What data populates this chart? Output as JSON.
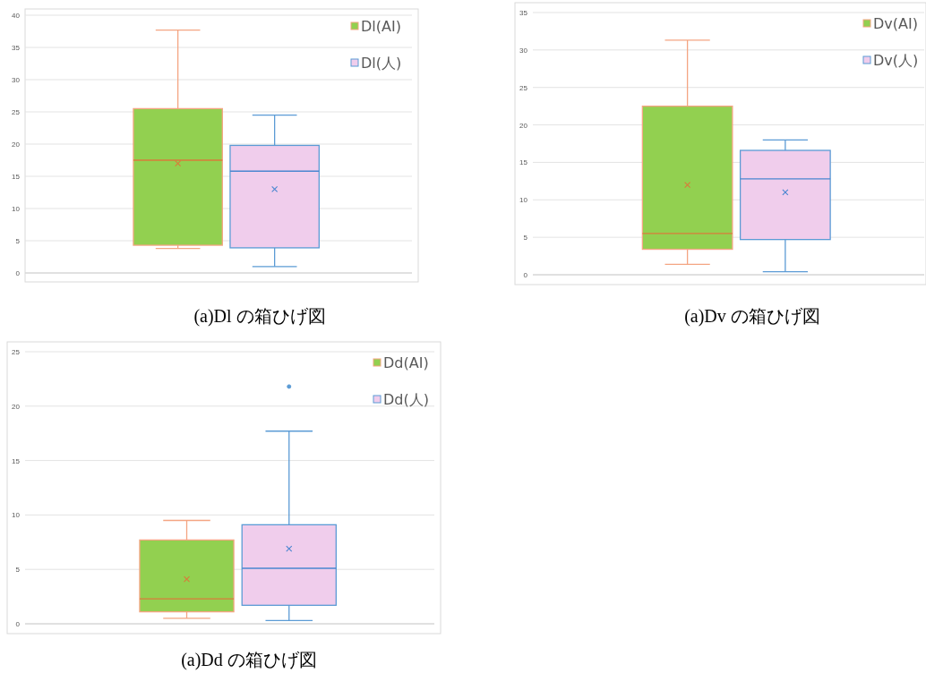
{
  "chart_data": [
    {
      "type": "box",
      "title": "(a)Dl の箱ひげ図",
      "categories": [
        null
      ],
      "ylim": [
        0,
        40
      ],
      "yticks": [
        0,
        5,
        10,
        15,
        20,
        25,
        30,
        35,
        40
      ],
      "grid": "y",
      "legend": "top right",
      "series": [
        {
          "name": "Dl(AI)",
          "color": "#92d050",
          "boxes": [
            {
              "low": 3.8,
              "q1": 4.3,
              "median": 17.5,
              "q3": 25.5,
              "high": 37.7,
              "mean": 17
            }
          ]
        },
        {
          "name": "Dl(人)",
          "color": "#f0cdec",
          "boxes": [
            {
              "low": 1,
              "q1": 3.9,
              "median": 15.8,
              "q3": 19.8,
              "high": 24.5,
              "mean": 13
            }
          ]
        }
      ]
    },
    {
      "type": "box",
      "title": "(a)Dv の箱ひげ図",
      "categories": [
        null
      ],
      "ylim": [
        0,
        35
      ],
      "yticks": [
        0,
        5,
        10,
        15,
        20,
        25,
        30,
        35
      ],
      "grid": "y",
      "legend": "top right",
      "series": [
        {
          "name": "Dv(AI)",
          "color": "#92d050",
          "boxes": [
            {
              "low": 1.4,
              "q1": 3.4,
              "median": 5.5,
              "q3": 22.5,
              "high": 31.3,
              "mean": 12
            }
          ]
        },
        {
          "name": "Dv(人)",
          "color": "#f0cdec",
          "boxes": [
            {
              "low": 0.4,
              "q1": 4.7,
              "median": 12.8,
              "q3": 16.6,
              "high": 18,
              "mean": 11
            }
          ]
        }
      ]
    },
    {
      "type": "box",
      "title": "(a)Dd の箱ひげ図",
      "categories": [
        null
      ],
      "ylim": [
        0,
        25
      ],
      "yticks": [
        0,
        5,
        10,
        15,
        20,
        25
      ],
      "grid": "y",
      "legend": "top right",
      "series": [
        {
          "name": "Dd(AI)",
          "color": "#92d050",
          "boxes": [
            {
              "low": 0.5,
              "q1": 1.1,
              "median": 2.3,
              "q3": 7.7,
              "high": 9.5,
              "mean": 4.1
            }
          ]
        },
        {
          "name": "Dd(人)",
          "color": "#f0cdec",
          "boxes": [
            {
              "low": 0.3,
              "q1": 1.7,
              "median": 5.1,
              "q3": 9.1,
              "high": 17.7,
              "mean": 6.9,
              "outliers": [
                21.8
              ]
            }
          ]
        }
      ]
    }
  ]
}
